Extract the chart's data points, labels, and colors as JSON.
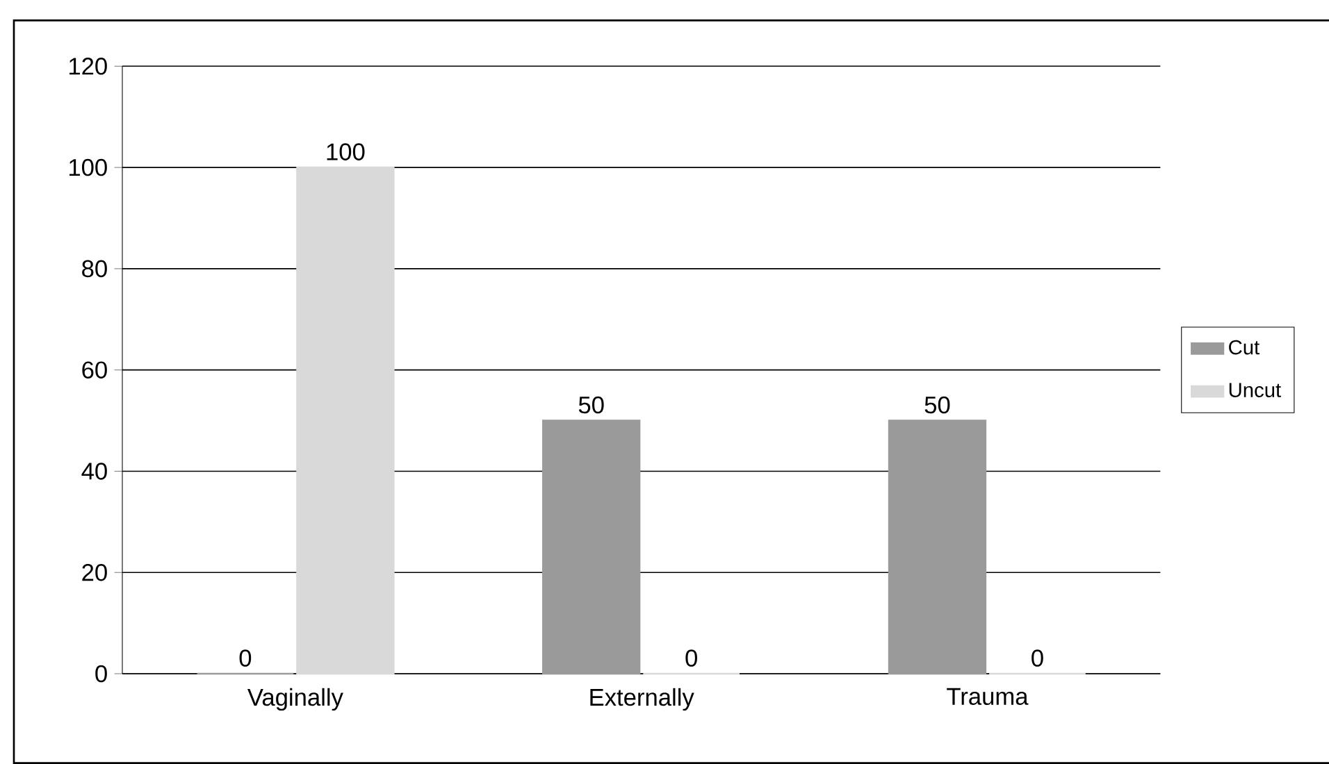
{
  "chart_data": {
    "type": "bar",
    "categories": [
      "Vaginally",
      "Externally",
      "Trauma"
    ],
    "series": [
      {
        "name": "Cut",
        "color": "#9a9a9a",
        "values": [
          0,
          50,
          50
        ]
      },
      {
        "name": "Uncut",
        "color": "#d9d9d9",
        "values": [
          100,
          0,
          0
        ]
      }
    ],
    "ylim": [
      0,
      120
    ],
    "yticks": [
      0,
      20,
      40,
      60,
      80,
      100,
      120
    ],
    "grid": "y",
    "legend": "right",
    "data_labels": true
  }
}
